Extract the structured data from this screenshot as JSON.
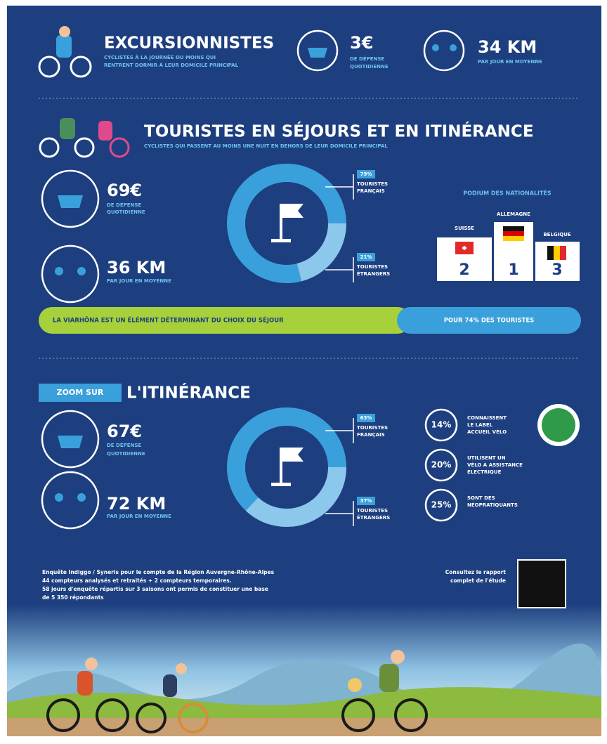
{
  "excursionnistes": {
    "title": "EXCURSIONNISTES",
    "subtitle": [
      "CYCLISTES À LA JOURNÉE OU MOINS QUI",
      "RENTRENT DORMIR À LEUR DOMICILE PRINCIPAL"
    ],
    "spending": "3€",
    "spending_caption": [
      "DE DÉPENSE",
      "QUOTIDIENNE"
    ],
    "distance": "34 KM",
    "distance_caption": "PAR JOUR EN MOYENNE"
  },
  "touristes": {
    "title": "TOURISTES EN SÉJOURS ET EN ITINÉRANCE",
    "subtitle": "CYCLISTES QUI PASSENT AU MOINS UNE NUIT EN DEHORS DE LEUR DOMICILE PRINCIPAL",
    "spending": "69€",
    "spending_caption": [
      "DE DÉPENSE",
      "QUOTIDIENNE"
    ],
    "distance": "36 KM",
    "distance_caption": "PAR JOUR EN MOYENNE",
    "donut": [
      {
        "value": 79,
        "label": "79%",
        "text": [
          "TOURISTES",
          "FRANÇAIS"
        ]
      },
      {
        "value": 21,
        "label": "21%",
        "text": [
          "TOURISTES",
          "ÉTRANGERS"
        ]
      }
    ],
    "podium": {
      "title": "PODIUM DES NATIONALITÉS",
      "places": [
        {
          "country": "SUISSE",
          "rank": "2"
        },
        {
          "country": "ALLEMAGNE",
          "rank": "1"
        },
        {
          "country": "BELGIQUE",
          "rank": "3"
        }
      ]
    },
    "banner": {
      "left": "LA VIARHÔNA EST UN ÉLÉMENT DÉTERMINANT DU CHOIX DU SÉJOUR",
      "right": "POUR 74% DES TOURISTES"
    }
  },
  "itinerance": {
    "tag": "ZOOM SUR",
    "title": "L'ITINÉRANCE",
    "spending": "67€",
    "spending_caption": [
      "DE DÉPENSE",
      "QUOTIDIENNE"
    ],
    "distance": "72 KM",
    "distance_caption": "PAR JOUR EN MOYENNE",
    "donut": [
      {
        "value": 63,
        "label": "63%",
        "text": [
          "TOURISTES",
          "FRANÇAIS"
        ]
      },
      {
        "value": 37,
        "label": "37%",
        "text": [
          "TOURISTES",
          "ÉTRANGERS"
        ]
      }
    ],
    "facts": [
      {
        "pct": "14%",
        "text": [
          "CONNAISSENT",
          "LE LABEL",
          "ACCUEIL VÉLO"
        ]
      },
      {
        "pct": "20%",
        "text": [
          "UTILISENT UN",
          "VÉLO À ASSISTANCE",
          "ÉLECTRIQUE"
        ]
      },
      {
        "pct": "25%",
        "text": [
          "SONT DES",
          "NÉOPRATIQUANTS"
        ]
      }
    ]
  },
  "footer": {
    "source": [
      "Enquête Indiggo / Syneris pour le compte de la Région Auvergne-Rhône-Alpes",
      "44 compteurs analysés et retraités + 2 compteurs temporaires.",
      "58 jours d'enquête répartis sur 3 saisons ont permis de constituer une base",
      "de 5 350 répondants"
    ],
    "report": [
      "Consultez le rapport",
      "complet de l'étude"
    ]
  }
}
